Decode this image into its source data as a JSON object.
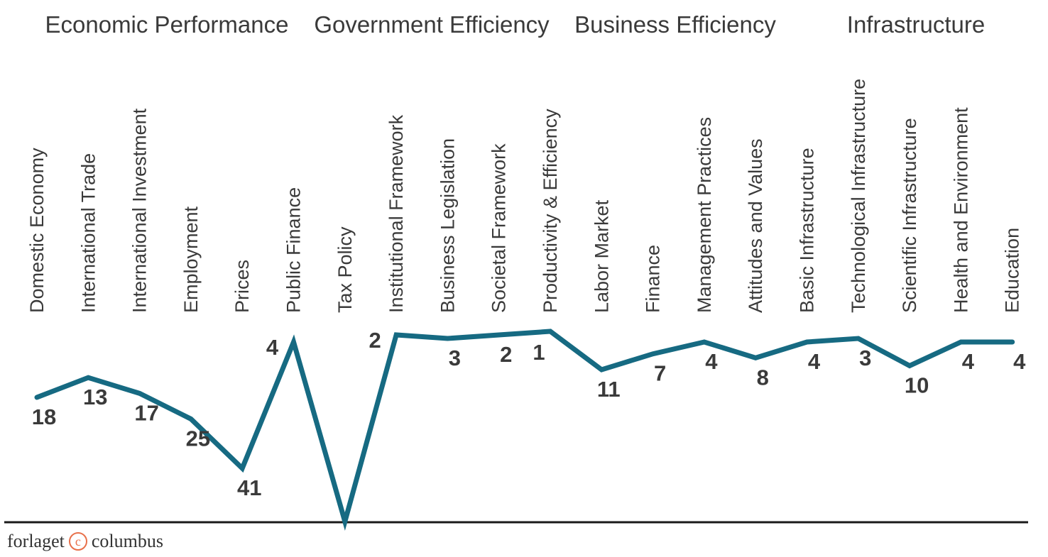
{
  "chart_data": {
    "type": "line",
    "groups": [
      "Economic Performance",
      "Government Efficiency",
      "Business Efficiency",
      "Infrastructure"
    ],
    "categories": [
      "Domestic Economy",
      "International Trade",
      "International Investment",
      "Employment",
      "Prices",
      "Public Finance",
      "Tax Policy",
      "Institutional Framework",
      "Business Legislation",
      "Societal Framework",
      "Productivity & Efficiency",
      "Labor Market",
      "Finance",
      "Management Practices",
      "Attitudes and Values",
      "Basic Infrastructure",
      "Technological Infrastructure",
      "Scientific Infrastructure",
      "Health and Environment",
      "Education"
    ],
    "values": [
      18,
      13,
      17,
      25,
      41,
      4,
      55,
      2,
      3,
      2,
      1,
      11,
      7,
      4,
      8,
      4,
      3,
      10,
      4,
      4
    ],
    "value_labels": [
      "18",
      "13",
      "17",
      "25",
      "41",
      "4",
      "",
      "2",
      "3",
      "2",
      "1",
      "11",
      "7",
      "4",
      "8",
      "4",
      "3",
      "10",
      "4",
      "4"
    ],
    "y_axis": "rank (inverted, 1 = best)",
    "line_color": "#166a82"
  },
  "footer": {
    "brand_left": "forlaget",
    "brand_mark": "c",
    "brand_right": "columbus"
  }
}
